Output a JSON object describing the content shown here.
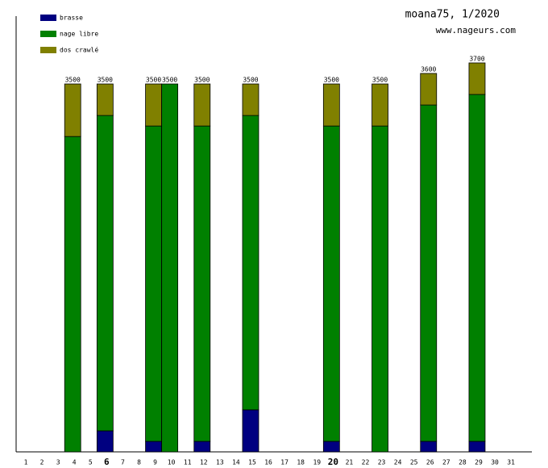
{
  "chart_data": {
    "type": "stacked_bar",
    "title": "moana75, 1/2020",
    "subtitle": "www.nageurs.com",
    "categories": [
      "1",
      "2",
      "3",
      "4",
      "5",
      "6",
      "7",
      "8",
      "9",
      "10",
      "11",
      "12",
      "13",
      "14",
      "15",
      "16",
      "17",
      "18",
      "19",
      "20",
      "21",
      "22",
      "23",
      "24",
      "25",
      "26",
      "27",
      "28",
      "29",
      "30",
      "31"
    ],
    "highlighted_categories": [
      "6",
      "20"
    ],
    "series": [
      {
        "name": "brasse",
        "color": "#000080",
        "values": [
          null,
          null,
          null,
          0,
          null,
          200,
          null,
          null,
          100,
          0,
          null,
          100,
          null,
          null,
          400,
          null,
          null,
          null,
          null,
          100,
          null,
          null,
          0,
          null,
          null,
          100,
          null,
          null,
          100,
          null,
          null
        ]
      },
      {
        "name": "nage libre",
        "color": "#008000",
        "values": [
          null,
          null,
          null,
          3000,
          null,
          3000,
          null,
          null,
          3000,
          3500,
          null,
          3000,
          null,
          null,
          2800,
          null,
          null,
          null,
          null,
          3000,
          null,
          null,
          3100,
          null,
          null,
          3200,
          null,
          null,
          3300,
          null,
          null
        ]
      },
      {
        "name": "dos crawlé",
        "color": "#808000",
        "values": [
          null,
          null,
          null,
          500,
          null,
          300,
          null,
          null,
          400,
          0,
          null,
          400,
          null,
          null,
          300,
          null,
          null,
          null,
          null,
          400,
          null,
          null,
          400,
          null,
          null,
          300,
          null,
          null,
          300,
          null,
          null
        ]
      }
    ],
    "totals": [
      null,
      null,
      null,
      3500,
      null,
      3500,
      null,
      null,
      3500,
      3500,
      null,
      3500,
      null,
      null,
      3500,
      null,
      null,
      null,
      null,
      3500,
      null,
      null,
      3500,
      null,
      null,
      3600,
      null,
      null,
      3700,
      null,
      null
    ],
    "ylim": [
      0,
      4145
    ],
    "legend": "top-left"
  }
}
